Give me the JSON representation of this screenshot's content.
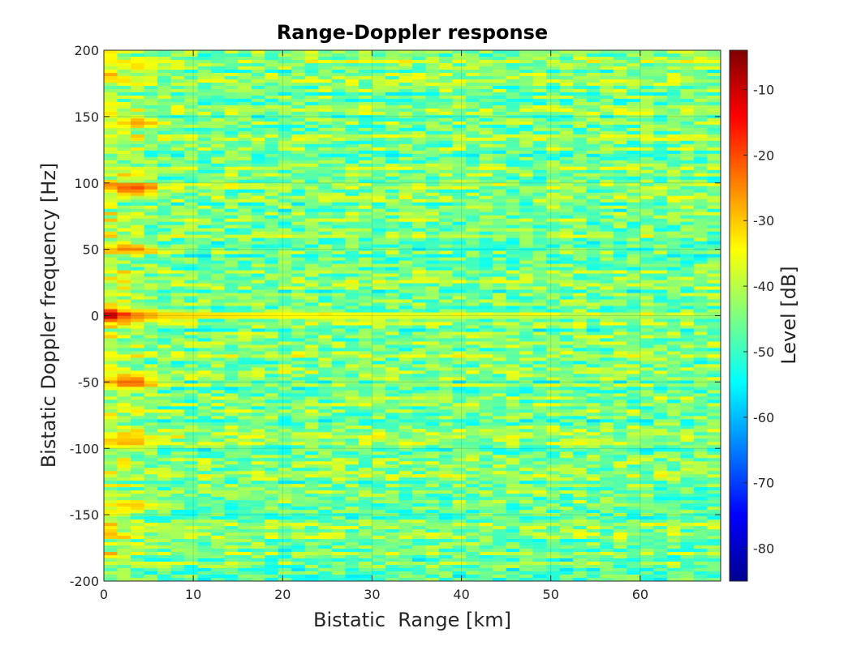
{
  "chart_data": {
    "type": "heatmap",
    "title": "Range-Doppler response",
    "xlabel": "Bistatic  Range [km]",
    "ylabel": "Bistatic Doppler frequency [Hz]",
    "colorbar_label": "Level [dB]",
    "colormap": "jet",
    "xlim": [
      0,
      69
    ],
    "ylim": [
      -200,
      200
    ],
    "clim": [
      -85,
      -4
    ],
    "x_ticks": [
      0,
      10,
      20,
      30,
      40,
      50,
      60
    ],
    "x_tick_labels": [
      "0",
      "10",
      "20",
      "30",
      "40",
      "50",
      "60"
    ],
    "y_ticks": [
      -200,
      -150,
      -100,
      -50,
      0,
      50,
      100,
      150,
      200
    ],
    "y_tick_labels": [
      "-200",
      "-150",
      "-100",
      "-50",
      "0",
      "50",
      "100",
      "150",
      "200"
    ],
    "colorbar_ticks": [
      -80,
      -70,
      -60,
      -50,
      -40,
      -30,
      -20,
      -10
    ],
    "colorbar_tick_labels": [
      "-80",
      "-70",
      "-60",
      "-50",
      "-40",
      "-30",
      "-20",
      "-10"
    ],
    "grid": true,
    "background_level_db": -45,
    "features": [
      {
        "range_km": 0,
        "doppler_hz": 0,
        "level_db": -6
      },
      {
        "range_km": 4,
        "doppler_hz": 0,
        "level_db": -25
      },
      {
        "range_km": 3,
        "doppler_hz": -50,
        "level_db": -22
      },
      {
        "range_km": 3,
        "doppler_hz": 50,
        "level_db": -24
      },
      {
        "range_km": 3.5,
        "doppler_hz": 96,
        "level_db": -20
      },
      {
        "range_km": 4,
        "doppler_hz": 145,
        "level_db": -27
      },
      {
        "range_km": 3,
        "doppler_hz": -95,
        "level_db": -28
      },
      {
        "range_km": 3,
        "doppler_hz": -143,
        "level_db": -30
      },
      {
        "range_km": 4,
        "doppler_hz": 188,
        "level_db": -32
      }
    ]
  },
  "colors": {
    "colormap_stops": [
      "#000080",
      "#0000ff",
      "#00ffff",
      "#ffff00",
      "#ff0000",
      "#800000"
    ]
  }
}
